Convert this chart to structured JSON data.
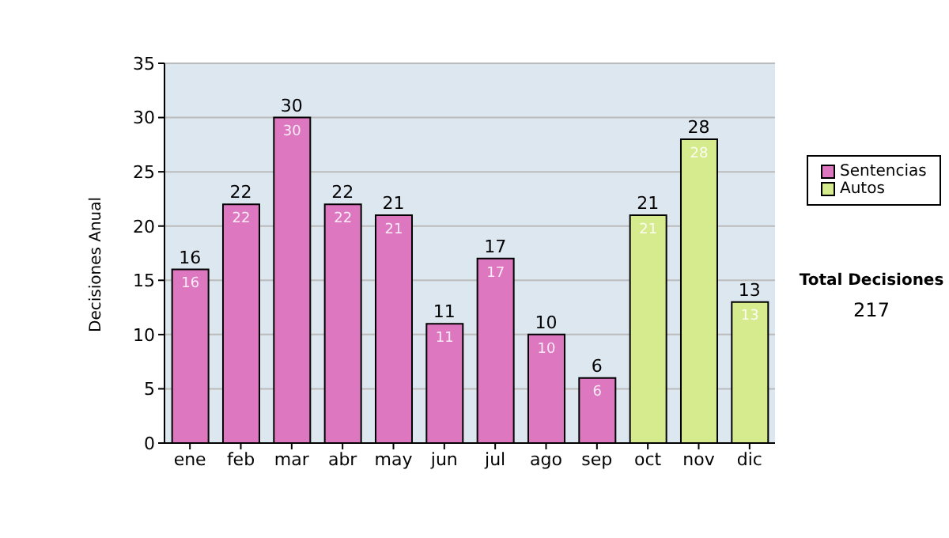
{
  "chart_data": {
    "type": "bar",
    "ylabel": "Decisiones Anual",
    "categories": [
      "ene",
      "feb",
      "mar",
      "abr",
      "may",
      "jun",
      "jul",
      "ago",
      "sep",
      "oct",
      "nov",
      "dic"
    ],
    "series": [
      {
        "name": "Sentencias",
        "color": "#dd77c0",
        "values": [
          16,
          22,
          30,
          22,
          21,
          11,
          17,
          10,
          6,
          null,
          null,
          null
        ]
      },
      {
        "name": "Autos",
        "color": "#d6eb8e",
        "values": [
          null,
          null,
          null,
          null,
          null,
          null,
          null,
          null,
          null,
          21,
          28,
          13
        ]
      }
    ],
    "ylim": [
      0,
      35
    ],
    "yticks": [
      0,
      5,
      10,
      15,
      20,
      25,
      30,
      35
    ],
    "grid": "y",
    "legend": "right",
    "data_labels": true,
    "annotations": [
      "Total Decisiones",
      "217",
      {
        "text": "16",
        "x": "ene",
        "y": 16
      },
      {
        "text": "22",
        "x": "feb",
        "y": 22
      },
      {
        "text": "30",
        "x": "mar",
        "y": 30
      },
      {
        "text": "22",
        "x": "abr",
        "y": 22
      },
      {
        "text": "21",
        "x": "may",
        "y": 21
      },
      {
        "text": "11",
        "x": "jun",
        "y": 11
      },
      {
        "text": "17",
        "x": "jul",
        "y": 17
      },
      {
        "text": "10",
        "x": "ago",
        "y": 10
      },
      {
        "text": "6",
        "x": "sep",
        "y": 6
      },
      {
        "text": "21",
        "x": "oct",
        "y": 21
      },
      {
        "text": "28",
        "x": "nov",
        "y": 28
      },
      {
        "text": "13",
        "x": "dic",
        "y": 13
      }
    ]
  }
}
